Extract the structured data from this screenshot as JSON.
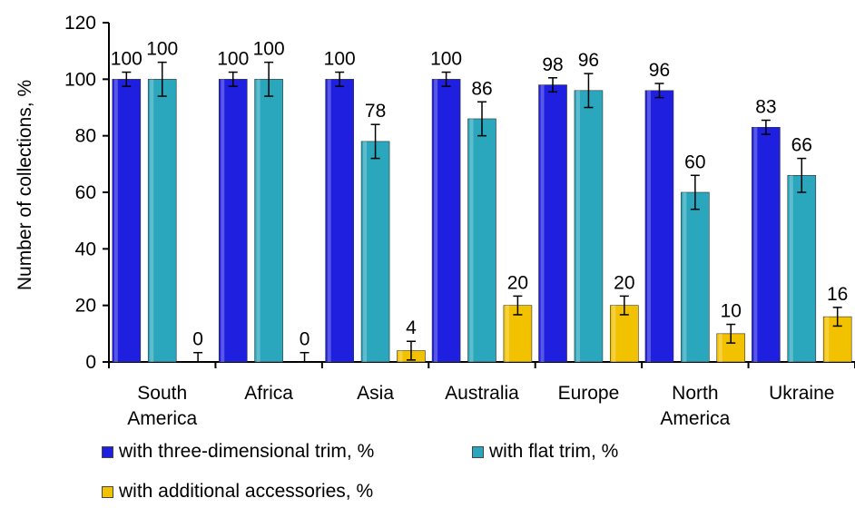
{
  "chart_data": {
    "type": "bar",
    "categories": [
      [
        "South",
        "America"
      ],
      [
        "Africa"
      ],
      [
        "Asia"
      ],
      [
        "Australia"
      ],
      [
        "Europe"
      ],
      [
        "North",
        "America"
      ],
      [
        "Ukraine"
      ]
    ],
    "series": [
      {
        "name": "with three-dimensional trim, %",
        "values": [
          100,
          100,
          100,
          100,
          98,
          96,
          83
        ],
        "labels": [
          "100",
          "100",
          "100",
          "100",
          "98",
          "96",
          "83"
        ],
        "color": "#1f1fe0",
        "error": 2.5
      },
      {
        "name": "with flat trim, %",
        "values": [
          100,
          100,
          78,
          86,
          96,
          60,
          66
        ],
        "labels": [
          "100",
          "100",
          "78",
          "86",
          "96",
          "60",
          "66"
        ],
        "color": "#2aa6bd",
        "error": 6
      },
      {
        "name": "with additional accessories, %",
        "values": [
          0,
          0,
          4,
          20,
          20,
          10,
          16
        ],
        "labels": [
          "0",
          "0",
          "4",
          "20",
          "20",
          "10",
          "16"
        ],
        "color": "#f2c200",
        "error": 3.3
      }
    ],
    "ylabel": "Number of collections, %",
    "xlabel": "",
    "ylim": [
      0,
      120
    ],
    "yticks": [
      "0",
      "20",
      "40",
      "60",
      "80",
      "100",
      "120"
    ],
    "legend": "bottom"
  }
}
